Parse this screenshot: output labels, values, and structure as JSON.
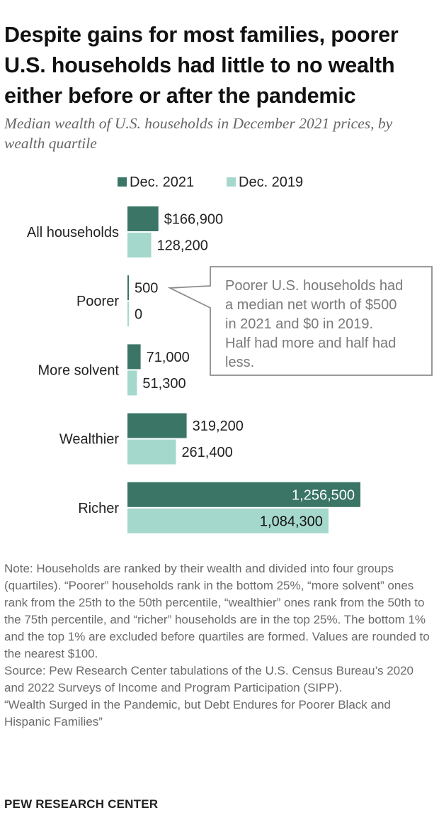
{
  "title": "Despite gains for most families, poorer U.S. households had little to no wealth either before or after the pandemic",
  "subtitle": "Median wealth of U.S. households in December 2021 prices, by wealth quartile",
  "colors": {
    "dec2021": "#3a7566",
    "dec2019": "#a5d8cc",
    "text": "#222222",
    "note": "#6a6a6a",
    "callout_text": "#7a7a7a",
    "callout_border": "#8c8c8c"
  },
  "chart_data": {
    "type": "bar",
    "orientation": "horizontal",
    "categories": [
      "All households",
      "Poorer",
      "More solvent",
      "Wealthier",
      "Richer"
    ],
    "series": [
      {
        "name": "Dec. 2021",
        "values": [
          166900,
          500,
          71000,
          319200,
          1256500
        ],
        "labels": [
          "$166,900",
          "500",
          "71,000",
          "319,200",
          "1,256,500"
        ]
      },
      {
        "name": "Dec. 2019",
        "values": [
          128200,
          0,
          51300,
          261400,
          1084300
        ],
        "labels": [
          "128,200",
          "0",
          "51,300",
          "261,400",
          "1,084,300"
        ]
      }
    ],
    "legend_position": "top",
    "xlim": [
      0,
      1256500
    ],
    "annotation": "Poorer U.S. households had a median net worth of $500 in 2021 and $0 in 2019. Half had more and half had less."
  },
  "notes": {
    "note": "Note: Households are ranked by their wealth and divided into four groups (quartiles). “Poorer” households rank in the bottom 25%, “more solvent” ones rank from the 25th to the 50th percentile, “wealthier” ones rank from the 50th to the 75th percentile, and “richer” households are in the top 25%. The bottom 1% and the top 1% are excluded before quartiles are formed. Values are rounded to the nearest $100.",
    "source": "Source: Pew Research Center tabulations of the U.S. Census Bureau’s 2020 and 2022 Surveys of Income and Program Participation (SIPP).",
    "report": "“Wealth Surged in the Pandemic, but Debt Endures for Poorer Black and Hispanic Families”"
  },
  "footer": "PEW RESEARCH CENTER"
}
